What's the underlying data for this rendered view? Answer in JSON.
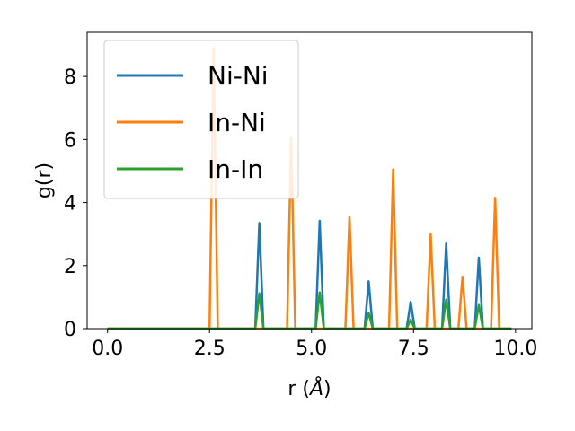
{
  "chart_data": {
    "type": "line",
    "xlabel": "r (",
    "xlabel_unit": "Å",
    "xlabel_suffix": ")",
    "ylabel": "g(r)",
    "xlim": [
      -0.5,
      10.4
    ],
    "ylim": [
      0,
      9.4
    ],
    "xticks": [
      0.0,
      2.5,
      5.0,
      7.5,
      10.0
    ],
    "xtick_labels": [
      "0.0",
      "2.5",
      "5.0",
      "7.5",
      "10.0"
    ],
    "yticks": [
      0,
      2,
      4,
      6,
      8
    ],
    "ytick_labels": [
      "0",
      "2",
      "4",
      "6",
      "8"
    ],
    "grid": false,
    "legend_position": "top-left",
    "x_range": [
      0.0,
      9.9
    ],
    "series": [
      {
        "name": "Ni-Ni",
        "color": "#1f77b4",
        "peaks": [
          [
            3.72,
            3.35
          ],
          [
            5.2,
            3.42
          ],
          [
            6.4,
            1.5
          ],
          [
            7.43,
            0.85
          ],
          [
            8.3,
            2.7
          ],
          [
            9.1,
            2.25
          ]
        ]
      },
      {
        "name": "In-Ni",
        "color": "#ff7f0e",
        "peaks": [
          [
            2.6,
            8.9
          ],
          [
            4.5,
            6.05
          ],
          [
            5.93,
            3.55
          ],
          [
            7.0,
            5.05
          ],
          [
            7.92,
            3.0
          ],
          [
            8.7,
            1.65
          ],
          [
            9.5,
            4.15
          ]
        ]
      },
      {
        "name": "In-In",
        "color": "#2ca02c",
        "peaks": [
          [
            3.72,
            1.12
          ],
          [
            5.2,
            1.15
          ],
          [
            6.4,
            0.5
          ],
          [
            7.43,
            0.28
          ],
          [
            8.3,
            0.92
          ],
          [
            9.1,
            0.75
          ]
        ]
      }
    ]
  }
}
